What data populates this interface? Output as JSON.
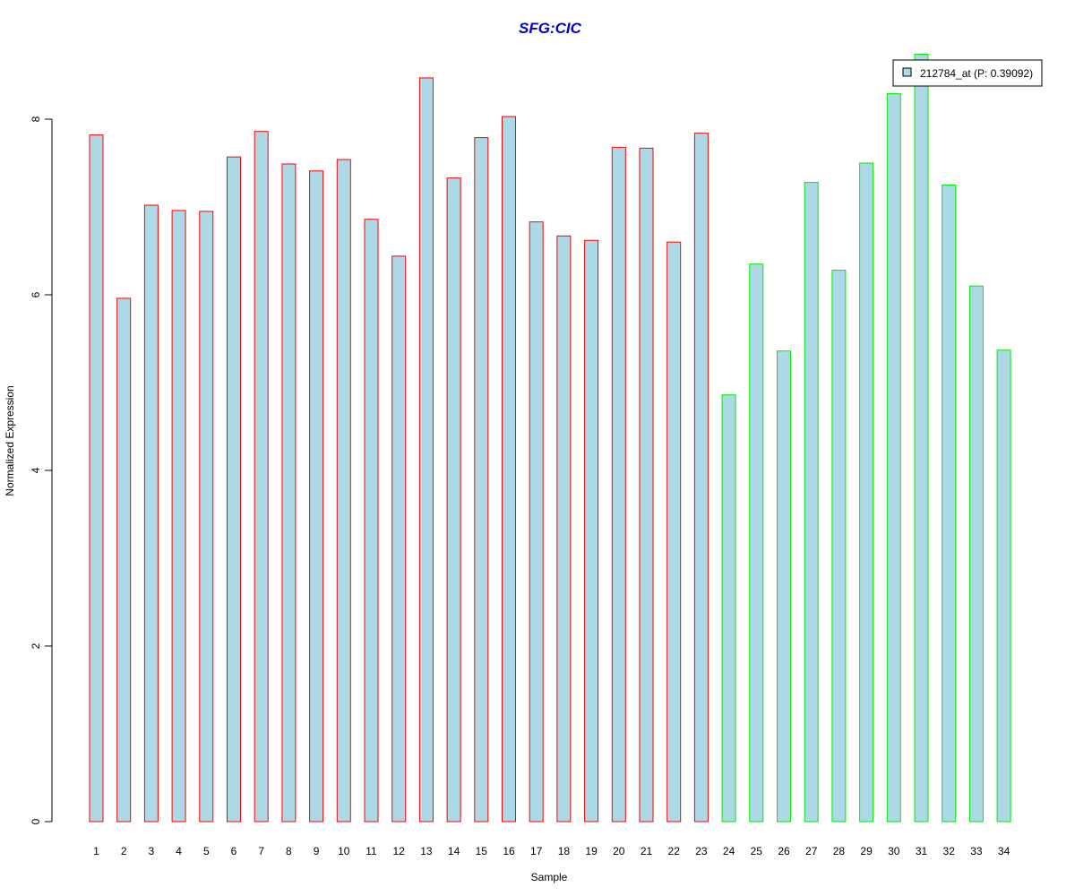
{
  "chart_data": {
    "type": "bar",
    "title": "SFG:CIC",
    "xlabel": "Sample",
    "ylabel": "Normalized Expression",
    "ylim": [
      0,
      8.75
    ],
    "yticks": [
      0,
      2,
      4,
      6,
      8
    ],
    "grid": false,
    "legend_position": "top-right",
    "categories": [
      "1",
      "2",
      "3",
      "4",
      "5",
      "6",
      "7",
      "8",
      "9",
      "10",
      "11",
      "12",
      "13",
      "14",
      "15",
      "16",
      "17",
      "18",
      "19",
      "20",
      "21",
      "22",
      "23",
      "24",
      "25",
      "26",
      "27",
      "28",
      "29",
      "30",
      "31",
      "32",
      "33",
      "34"
    ],
    "series": [
      {
        "name": "212784_at (P: 0.39092)",
        "values": [
          7.82,
          5.96,
          7.02,
          6.96,
          6.95,
          7.57,
          7.86,
          7.49,
          7.41,
          7.54,
          6.86,
          6.44,
          8.47,
          7.33,
          7.79,
          8.03,
          6.83,
          6.67,
          6.62,
          7.68,
          7.67,
          6.6,
          7.84,
          4.86,
          6.35,
          5.36,
          7.28,
          6.28,
          7.5,
          8.29,
          8.74,
          7.25,
          6.1,
          5.37
        ],
        "groups": [
          "1",
          "1",
          "1",
          "1",
          "1",
          "1",
          "1",
          "1",
          "1",
          "1",
          "1",
          "1",
          "1",
          "1",
          "1",
          "1",
          "1",
          "1",
          "1",
          "1",
          "1",
          "1",
          "1",
          "2",
          "2",
          "2",
          "2",
          "2",
          "2",
          "2",
          "2",
          "2",
          "2",
          "2"
        ]
      }
    ],
    "colors": {
      "bar_fill": "#add8e6",
      "group_1_border": "#ff0000",
      "group_2_border": "#00ee00",
      "title": "#0000cd",
      "axis": "#000000"
    }
  }
}
